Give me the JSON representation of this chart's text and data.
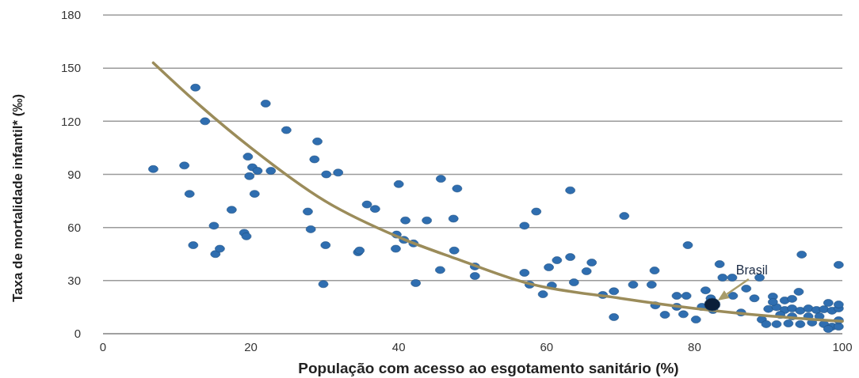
{
  "chart_data": {
    "type": "scatter",
    "xlabel": "População com acesso ao esgotamento sanitário (%)",
    "ylabel": "Taxa de mortalidade infantil* (‰)",
    "xlim": [
      0,
      100
    ],
    "xticks": [
      0,
      20,
      40,
      60,
      80,
      100
    ],
    "ylim": [
      0,
      180
    ],
    "yticks": [
      0,
      30,
      60,
      90,
      120,
      150,
      180
    ],
    "grid": "y",
    "marker": "circle",
    "series": [
      {
        "color": "#2f6eb0",
        "x": [
          6.8,
          11,
          12.5,
          13.8,
          11.7,
          12.2,
          15,
          15.2,
          15.8,
          17.4,
          19.1,
          19.4,
          19.6,
          19.8,
          20.2,
          20.5,
          20.9,
          22,
          22.7,
          24.8,
          27.7,
          28.1,
          28.6,
          29,
          30.2,
          30.1,
          29.8,
          31.8,
          34.5,
          34.7,
          35.7,
          36.8,
          40,
          40.9,
          43.8,
          47.4,
          45.7,
          47.9,
          39.7,
          40.7,
          42,
          39.6,
          47.5,
          45.6,
          50.3,
          50.3,
          42.3,
          57,
          58.6,
          63.2,
          57,
          57.7,
          59.5,
          60.3,
          61.4,
          63.2,
          63.7,
          65.4,
          66.1,
          60.7,
          67.6,
          70.5,
          79.1,
          69.1,
          69.1,
          71.7,
          74.6,
          74.2,
          77.6,
          78.9,
          74.7,
          76,
          78.5,
          80.2,
          81.5,
          82.2,
          83.4,
          83.8,
          85.1,
          85.2,
          87,
          88.1,
          88.8,
          89.1,
          94.5,
          99.5,
          94.1,
          90.6,
          86.3,
          82.5,
          81,
          77.6,
          90,
          91.1,
          92.2,
          93.2,
          94.3,
          95.4,
          96.5,
          97.5,
          98.6,
          99.5,
          99.5,
          98.1,
          89.7,
          91.1,
          92.7,
          94.3,
          95.9,
          97.5,
          98.6,
          99.5,
          98.1,
          99.5,
          96.9,
          93.2,
          91.6,
          95.4,
          90.6,
          92.2,
          93.2
        ],
        "values": [
          93,
          95,
          139,
          120,
          79,
          50,
          61,
          45,
          48,
          70,
          57,
          55,
          100,
          89,
          94,
          79,
          92,
          130,
          92,
          115,
          69,
          59,
          98.5,
          108.6,
          90,
          50,
          28,
          91,
          46,
          47,
          73,
          70.5,
          84.5,
          64,
          64,
          65,
          87.5,
          82,
          56,
          53,
          51,
          48,
          47,
          36,
          38,
          32.6,
          28.6,
          61,
          69,
          81,
          34.4,
          27.7,
          22.3,
          37.5,
          41.5,
          43.3,
          29,
          35.3,
          40.2,
          27.2,
          21.9,
          66.5,
          50,
          24,
          9.4,
          27.7,
          35.7,
          27.7,
          21.4,
          21.4,
          16,
          10.7,
          11,
          8,
          24.5,
          20,
          39.3,
          31.7,
          31.7,
          21.4,
          25.5,
          20,
          31.7,
          8,
          44.7,
          38.9,
          23.7,
          21,
          12,
          13.4,
          15.2,
          15.2,
          14,
          15,
          13.4,
          14.3,
          13,
          14.3,
          13.4,
          13.8,
          13,
          14.3,
          16.5,
          17.4,
          5.4,
          5.4,
          5.8,
          5.4,
          6.3,
          5.4,
          4,
          4,
          2.7,
          7.6,
          9.8,
          9.8,
          10.7,
          9.8,
          17.9,
          18.8,
          19.7
        ]
      },
      {
        "type": "line",
        "color": "#9b8c5a",
        "marker": "none",
        "x": [
          6.8,
          12,
          20,
          30,
          40,
          48,
          57,
          70,
          80,
          90,
          100
        ],
        "values": [
          153,
          133,
          105,
          75,
          54.5,
          42,
          29,
          20,
          14.3,
          10,
          7
        ]
      },
      {
        "type": "scatter",
        "color": "#0b1f3a",
        "x": [
          82.4
        ],
        "values": [
          16.5
        ]
      }
    ],
    "annotations": [
      {
        "text": "Brasil",
        "x": 82.4,
        "y": 16.5
      }
    ]
  }
}
